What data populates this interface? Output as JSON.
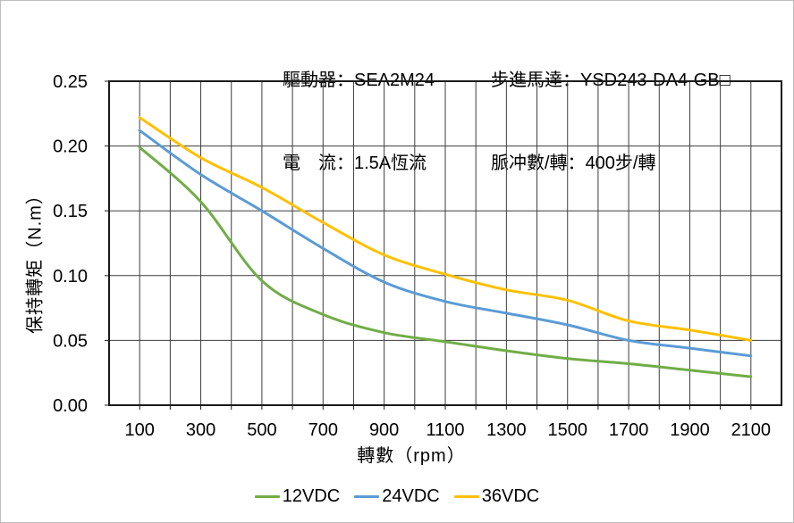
{
  "header": {
    "col1": [
      {
        "label": "驅動器：",
        "value": "SEA2M24"
      },
      {
        "label": "電　流：",
        "value": "1.5A恆流"
      }
    ],
    "col2": [
      {
        "label": "步進馬達：",
        "value": "YSD243-DA4-GB□"
      },
      {
        "label": "脈冲數/轉：",
        "value": "400步/轉"
      }
    ]
  },
  "chart_data": {
    "type": "line",
    "title": "",
    "xlabel": "轉數（rpm）",
    "ylabel": "保持轉矩（N.m）",
    "x": [
      100,
      300,
      500,
      700,
      900,
      1100,
      1300,
      1500,
      1700,
      1900,
      2100
    ],
    "series": [
      {
        "name": "12VDC",
        "color": "#70AD47",
        "values": [
          0.199,
          0.157,
          0.096,
          0.07,
          0.056,
          0.049,
          0.042,
          0.036,
          0.032,
          0.027,
          0.022
        ]
      },
      {
        "name": "24VDC",
        "color": "#5B9BD5",
        "values": [
          0.212,
          0.178,
          0.15,
          0.121,
          0.095,
          0.08,
          0.071,
          0.062,
          0.05,
          0.044,
          0.038
        ]
      },
      {
        "name": "36VDC",
        "color": "#FFC000",
        "values": [
          0.222,
          0.191,
          0.168,
          0.141,
          0.116,
          0.101,
          0.089,
          0.081,
          0.065,
          0.058,
          0.05
        ]
      }
    ],
    "xlim": [
      0,
      2200
    ],
    "ylim": [
      0,
      0.25
    ],
    "x_grid_step": 100,
    "y_grid_step": 0.05,
    "x_tick_labels": [
      "100",
      "300",
      "500",
      "700",
      "900",
      "1100",
      "1300",
      "1500",
      "1700",
      "1900",
      "2100"
    ],
    "x_tick_values": [
      100,
      300,
      500,
      700,
      900,
      1100,
      1300,
      1500,
      1700,
      1900,
      2100
    ],
    "y_tick_labels": [
      "0.00",
      "0.05",
      "0.10",
      "0.15",
      "0.20",
      "0.25"
    ],
    "y_tick_values": [
      0,
      0.05,
      0.1,
      0.15,
      0.2,
      0.25
    ],
    "grid": true,
    "legend_position": "bottom",
    "grid_color": "#3d3d3d",
    "border_color": "#1a1a1a"
  }
}
